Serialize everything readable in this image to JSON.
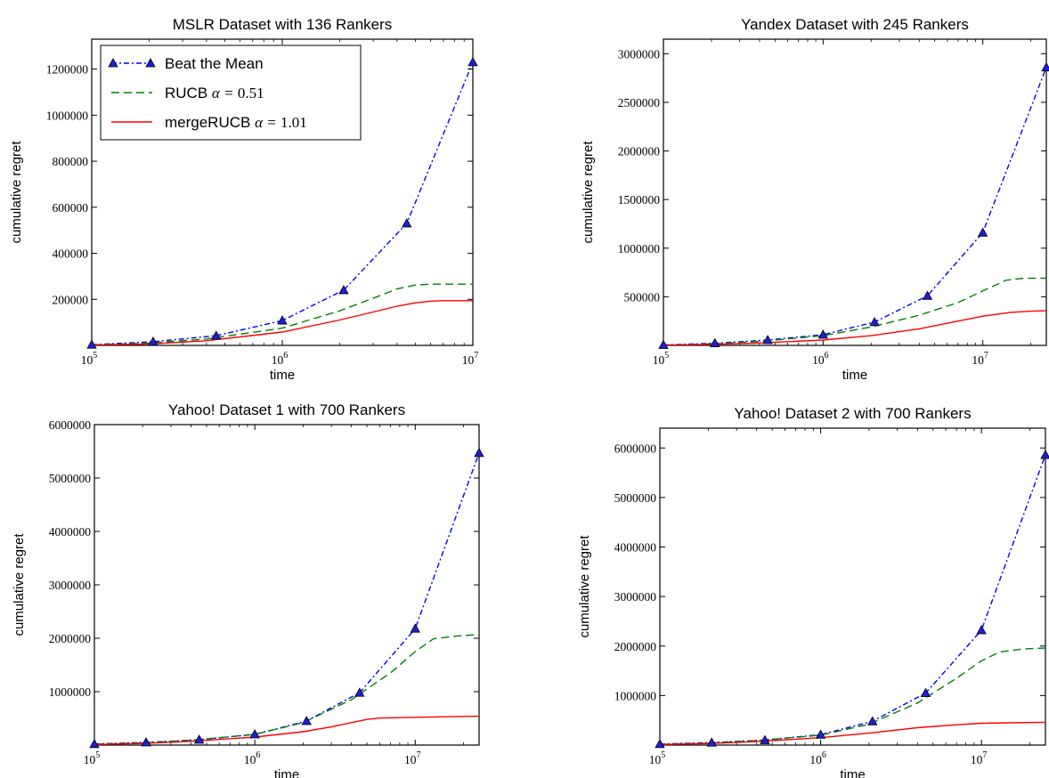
{
  "chart_data": [
    {
      "type": "line",
      "title": "MSLR Dataset with 136 Rankers",
      "xlabel": "time",
      "ylabel": "cumulative regret",
      "x_scale": "log",
      "xlim": [
        100000,
        10000000
      ],
      "ylim": [
        0,
        1330000
      ],
      "x_ticks": [
        100000,
        1000000,
        10000000
      ],
      "x_tick_labels": [
        {
          "base": "10",
          "exp": "5"
        },
        {
          "base": "10",
          "exp": "6"
        },
        {
          "base": "10",
          "exp": "7"
        }
      ],
      "y_ticks": [
        200000,
        400000,
        600000,
        800000,
        1000000,
        1200000
      ],
      "y_tick_labels": [
        "200000",
        "400000",
        "600000",
        "800000",
        "1000000",
        "1200000"
      ],
      "legend": {
        "position": "upper-left",
        "entries": [
          {
            "text": "Beat the Mean",
            "math": ""
          },
          {
            "text": "RUCB ",
            "math": "α = ",
            "num": "0.51"
          },
          {
            "text": "mergeRUCB ",
            "math": "α = ",
            "num": "1.01"
          }
        ]
      },
      "series": [
        {
          "name": "Beat the Mean",
          "color": "#0000ff",
          "style": "dash-dot",
          "marker": "triangle",
          "x": [
            100000,
            210000,
            450000,
            1000000,
            2100000,
            4500000,
            10000000
          ],
          "y": [
            3000,
            16000,
            42000,
            108000,
            240000,
            530000,
            1230000
          ]
        },
        {
          "name": "RUCB α = 0.51",
          "color": "#008000",
          "style": "dashed",
          "marker": "none",
          "x": [
            100000,
            200000,
            400000,
            1000000,
            2000000,
            3000000,
            4000000,
            5000000,
            6000000,
            8000000,
            10000000
          ],
          "y": [
            2000,
            10000,
            28000,
            75000,
            150000,
            205000,
            245000,
            262000,
            266000,
            266000,
            266000
          ]
        },
        {
          "name": "mergeRUCB α = 1.01",
          "color": "#ff0000",
          "style": "solid",
          "marker": "none",
          "x": [
            100000,
            200000,
            400000,
            1000000,
            2000000,
            3000000,
            4000000,
            5000000,
            6000000,
            7000000,
            10000000
          ],
          "y": [
            1000,
            6000,
            20000,
            58000,
            110000,
            145000,
            170000,
            185000,
            192000,
            194000,
            194000
          ]
        }
      ]
    },
    {
      "type": "line",
      "title": "Yandex Dataset with 245 Rankers",
      "xlabel": "time",
      "ylabel": "cumulative regret",
      "x_scale": "log",
      "xlim": [
        100000,
        25000000
      ],
      "ylim": [
        0,
        3150000
      ],
      "x_ticks": [
        100000,
        1000000,
        10000000
      ],
      "x_tick_labels": [
        {
          "base": "10",
          "exp": "5"
        },
        {
          "base": "10",
          "exp": "6"
        },
        {
          "base": "10",
          "exp": "7"
        }
      ],
      "y_ticks": [
        500000,
        1000000,
        1500000,
        2000000,
        2500000,
        3000000
      ],
      "y_tick_labels": [
        "500000",
        "1000000",
        "1500000",
        "2000000",
        "2500000",
        "3000000"
      ],
      "series": [
        {
          "name": "Beat the Mean",
          "color": "#0000ff",
          "style": "dash-dot",
          "marker": "triangle",
          "x": [
            100000,
            210000,
            450000,
            1000000,
            2100000,
            4500000,
            10000000,
            25000000
          ],
          "y": [
            5000,
            22000,
            55000,
            110000,
            240000,
            510000,
            1160000,
            2860000
          ]
        },
        {
          "name": "RUCB α = 0.51",
          "color": "#008000",
          "style": "dashed",
          "marker": "none",
          "x": [
            100000,
            200000,
            400000,
            1000000,
            2000000,
            4000000,
            7000000,
            10000000,
            14000000,
            18000000,
            25000000
          ],
          "y": [
            3000,
            15000,
            40000,
            100000,
            190000,
            310000,
            440000,
            560000,
            670000,
            690000,
            690000
          ]
        },
        {
          "name": "mergeRUCB α = 1.01",
          "color": "#ff0000",
          "style": "solid",
          "marker": "none",
          "x": [
            100000,
            200000,
            400000,
            1000000,
            2000000,
            4000000,
            7000000,
            10000000,
            15000000,
            20000000,
            25000000
          ],
          "y": [
            2000,
            10000,
            25000,
            55000,
            100000,
            170000,
            250000,
            300000,
            340000,
            352000,
            356000
          ]
        }
      ]
    },
    {
      "type": "line",
      "title": "Yahoo! Dataset 1 with 700 Rankers",
      "xlabel": "time",
      "ylabel": "cumulative regret",
      "x_scale": "log",
      "xlim": [
        100000,
        25000000
      ],
      "ylim": [
        0,
        6000000
      ],
      "x_ticks": [
        100000,
        1000000,
        10000000
      ],
      "x_tick_labels": [
        {
          "base": "10",
          "exp": "5"
        },
        {
          "base": "10",
          "exp": "6"
        },
        {
          "base": "10",
          "exp": "7"
        }
      ],
      "y_ticks": [
        1000000,
        2000000,
        3000000,
        4000000,
        5000000,
        6000000
      ],
      "y_tick_labels": [
        "1000000",
        "2000000",
        "3000000",
        "4000000",
        "5000000",
        "6000000"
      ],
      "series": [
        {
          "name": "Beat the Mean",
          "color": "#0000ff",
          "style": "dash-dot",
          "marker": "triangle",
          "x": [
            100000,
            210000,
            450000,
            1000000,
            2100000,
            4500000,
            10000000,
            25000000
          ],
          "y": [
            20000,
            50000,
            100000,
            200000,
            450000,
            980000,
            2180000,
            5470000
          ]
        },
        {
          "name": "RUCB α = 0.51",
          "color": "#008000",
          "style": "dashed",
          "marker": "none",
          "x": [
            100000,
            200000,
            400000,
            1000000,
            2000000,
            4000000,
            7000000,
            10000000,
            13000000,
            18000000,
            25000000
          ],
          "y": [
            15000,
            40000,
            90000,
            200000,
            420000,
            850000,
            1350000,
            1750000,
            1990000,
            2040000,
            2070000
          ]
        },
        {
          "name": "mergeRUCB α = 1.01",
          "color": "#ff0000",
          "style": "solid",
          "marker": "none",
          "x": [
            100000,
            200000,
            400000,
            1000000,
            2000000,
            3000000,
            4000000,
            5000000,
            6000000,
            10000000,
            25000000
          ],
          "y": [
            10000,
            30000,
            70000,
            150000,
            250000,
            340000,
            420000,
            480000,
            505000,
            520000,
            540000
          ]
        }
      ]
    },
    {
      "type": "line",
      "title": "Yahoo! Dataset 2 with 700 Rankers",
      "xlabel": "time",
      "ylabel": "cumulative regret",
      "x_scale": "log",
      "xlim": [
        100000,
        25000000
      ],
      "ylim": [
        0,
        6400000
      ],
      "x_ticks": [
        100000,
        1000000,
        10000000
      ],
      "x_tick_labels": [
        {
          "base": "10",
          "exp": "5"
        },
        {
          "base": "10",
          "exp": "6"
        },
        {
          "base": "10",
          "exp": "7"
        }
      ],
      "y_ticks": [
        1000000,
        2000000,
        3000000,
        4000000,
        5000000,
        6000000
      ],
      "y_tick_labels": [
        "1000000",
        "2000000",
        "3000000",
        "4000000",
        "5000000",
        "6000000"
      ],
      "series": [
        {
          "name": "Beat the Mean",
          "color": "#0000ff",
          "style": "dash-dot",
          "marker": "triangle",
          "x": [
            100000,
            210000,
            450000,
            1000000,
            2100000,
            4500000,
            10000000,
            25000000
          ],
          "y": [
            20000,
            50000,
            100000,
            210000,
            480000,
            1050000,
            2320000,
            5860000
          ]
        },
        {
          "name": "RUCB α = 0.51",
          "color": "#008000",
          "style": "dashed",
          "marker": "none",
          "x": [
            100000,
            200000,
            400000,
            1000000,
            2000000,
            4000000,
            7000000,
            10000000,
            13000000,
            18000000,
            25000000
          ],
          "y": [
            15000,
            40000,
            90000,
            200000,
            420000,
            850000,
            1350000,
            1700000,
            1880000,
            1940000,
            1960000
          ]
        },
        {
          "name": "mergeRUCB α = 1.01",
          "color": "#ff0000",
          "style": "solid",
          "marker": "none",
          "x": [
            100000,
            200000,
            400000,
            1000000,
            2000000,
            4000000,
            7000000,
            10000000,
            15000000,
            25000000
          ],
          "y": [
            10000,
            30000,
            70000,
            150000,
            240000,
            350000,
            410000,
            440000,
            450000,
            460000
          ]
        }
      ]
    }
  ]
}
